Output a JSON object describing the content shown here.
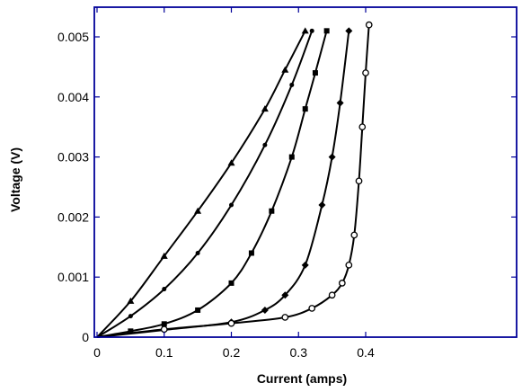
{
  "chart_data": {
    "type": "line",
    "xlabel": "Current (amps)",
    "ylabel": "Voltage (V)",
    "xlim": [
      0,
      0.45
    ],
    "ylim": [
      0,
      0.0055
    ],
    "xticks": [
      0,
      0.1,
      0.2,
      0.3,
      0.4
    ],
    "xtick_labels": [
      "0",
      "0.1",
      "0.2",
      "0.3",
      "0.4"
    ],
    "yticks": [
      0,
      0.001,
      0.002,
      0.003,
      0.004,
      0.005
    ],
    "ytick_labels": [
      "0",
      "0.001",
      "0.002",
      "0.003",
      "0.004",
      "0.005"
    ],
    "grid": false,
    "series": [
      {
        "marker": "triangle",
        "x": [
          0,
          0.05,
          0.1,
          0.15,
          0.2,
          0.25,
          0.28,
          0.31
        ],
        "y": [
          0,
          0.0006,
          0.00135,
          0.0021,
          0.0029,
          0.0038,
          0.00445,
          0.0051
        ]
      },
      {
        "marker": "dot",
        "x": [
          0,
          0.05,
          0.1,
          0.15,
          0.2,
          0.25,
          0.29,
          0.32
        ],
        "y": [
          0,
          0.00035,
          0.0008,
          0.0014,
          0.0022,
          0.0032,
          0.0042,
          0.0051
        ]
      },
      {
        "marker": "square",
        "x": [
          0,
          0.05,
          0.1,
          0.15,
          0.2,
          0.23,
          0.26,
          0.29,
          0.31,
          0.325,
          0.342
        ],
        "y": [
          0,
          0.0001,
          0.00022,
          0.00045,
          0.0009,
          0.0014,
          0.0021,
          0.003,
          0.0038,
          0.0044,
          0.0051
        ]
      },
      {
        "marker": "diamond",
        "x": [
          0,
          0.1,
          0.2,
          0.25,
          0.28,
          0.31,
          0.335,
          0.35,
          0.362,
          0.375
        ],
        "y": [
          0,
          0.00012,
          0.00025,
          0.00045,
          0.0007,
          0.0012,
          0.0022,
          0.003,
          0.0039,
          0.0051
        ]
      },
      {
        "marker": "circle",
        "x": [
          0,
          0.1,
          0.2,
          0.28,
          0.32,
          0.35,
          0.365,
          0.375,
          0.383,
          0.39,
          0.395,
          0.4,
          0.405
        ],
        "y": [
          0,
          0.00013,
          0.00023,
          0.00033,
          0.00048,
          0.0007,
          0.0009,
          0.0012,
          0.0017,
          0.0026,
          0.0035,
          0.0044,
          0.0052
        ]
      }
    ]
  }
}
